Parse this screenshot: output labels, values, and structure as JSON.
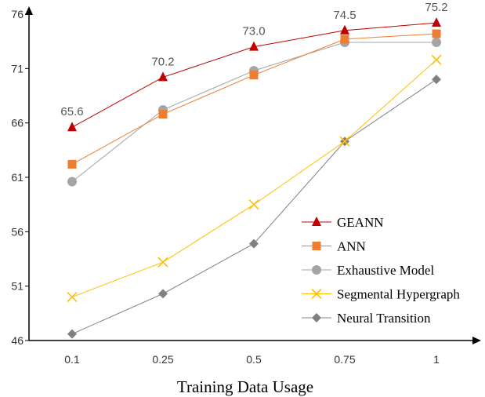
{
  "chart_data": {
    "type": "line",
    "title": "",
    "xlabel": "Training Data Usage",
    "ylabel": "",
    "categories": [
      "0.1",
      "0.25",
      "0.5",
      "0.75",
      "1"
    ],
    "ylim": [
      46,
      76
    ],
    "yticks": [
      "46",
      "51",
      "56",
      "61",
      "66",
      "71",
      "76"
    ],
    "legend_position": "bottom-right",
    "series": [
      {
        "name": "GEANN",
        "color": "#C00000",
        "marker": "triangle",
        "values": [
          65.6,
          70.2,
          73.0,
          74.5,
          75.2
        ],
        "labels": [
          "65.6",
          "70.2",
          "73.0",
          "74.5",
          "75.2"
        ]
      },
      {
        "name": "ANN",
        "color": "#ED7D31",
        "marker": "square",
        "values": [
          62.2,
          66.8,
          70.4,
          73.7,
          74.2
        ]
      },
      {
        "name": "Exhaustive Model",
        "color": "#A5A5A5",
        "marker": "circle",
        "values": [
          60.6,
          67.2,
          70.8,
          73.4,
          73.4
        ]
      },
      {
        "name": "Segmental Hypergraph",
        "color": "#FFC000",
        "marker": "x",
        "values": [
          50.0,
          53.2,
          58.5,
          64.3,
          71.8
        ]
      },
      {
        "name": "Neural Transition",
        "color": "#808080",
        "marker": "diamond",
        "values": [
          46.6,
          50.3,
          54.9,
          64.3,
          70.0
        ]
      }
    ]
  }
}
